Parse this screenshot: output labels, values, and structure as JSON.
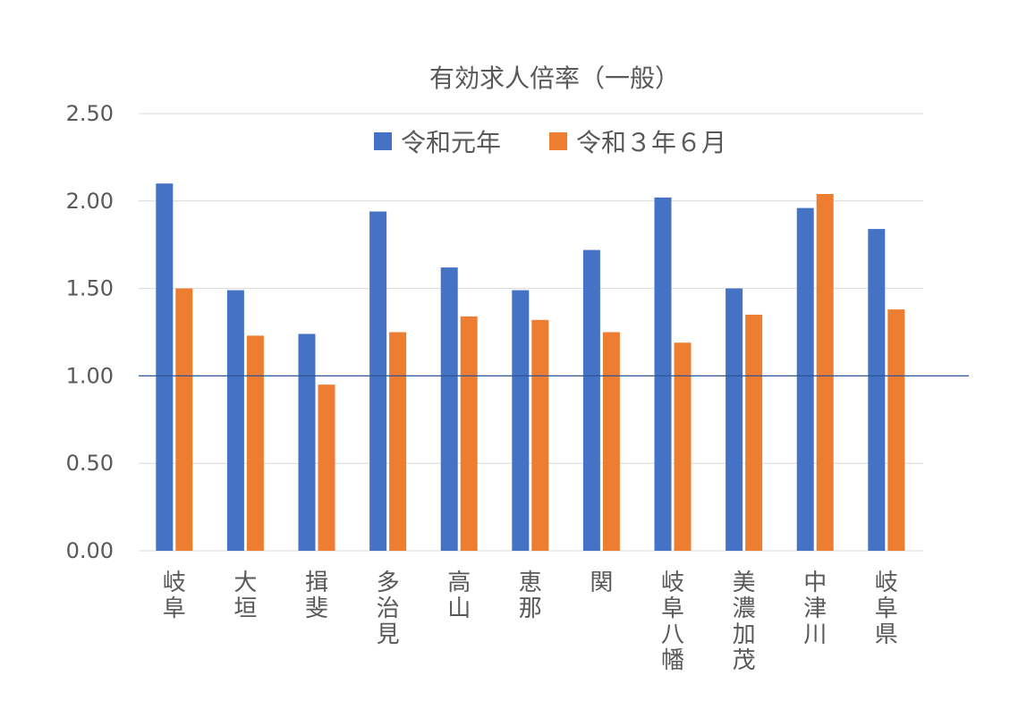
{
  "chart_data": {
    "type": "bar",
    "title": "有効求人倍率（一般）",
    "categories": [
      "岐阜",
      "大垣",
      "揖斐",
      "多治見",
      "高山",
      "恵那",
      "関",
      "岐阜八幡",
      "美濃加茂",
      "中津川",
      "岐阜県"
    ],
    "series": [
      {
        "name": "令和元年",
        "color": "#4472c4",
        "values": [
          2.1,
          1.49,
          1.24,
          1.94,
          1.62,
          1.49,
          1.72,
          2.02,
          1.5,
          1.96,
          1.84
        ]
      },
      {
        "name": "令和３年６月",
        "color": "#ed7d31",
        "values": [
          1.5,
          1.23,
          0.95,
          1.25,
          1.34,
          1.32,
          1.25,
          1.19,
          1.35,
          2.04,
          1.38
        ]
      }
    ],
    "ylim": [
      0,
      2.5
    ],
    "yticks": [
      "0.00",
      "0.50",
      "1.00",
      "1.50",
      "2.00",
      "2.50"
    ],
    "reference_line": {
      "value": 1.0,
      "color": "#2f5597"
    },
    "grid": true,
    "legend_position": "top",
    "xlabel": "",
    "ylabel": ""
  }
}
